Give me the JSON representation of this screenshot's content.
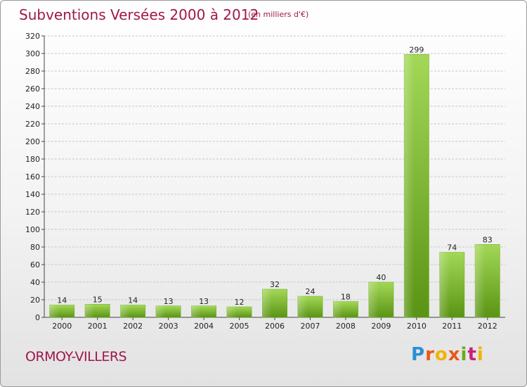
{
  "header": {
    "title": "Subventions Versées 2000 à 2012",
    "subtitle": "(en milliers d'€)"
  },
  "footer": {
    "commune": "ORMOY-VILLERS",
    "logo_text": "Proxiti"
  },
  "colors": {
    "title": "#a0174c",
    "bar_light": "#9bd24e",
    "bar_dark": "#5f9a17",
    "grid": "#c8c8c8"
  },
  "chart_data": {
    "type": "bar",
    "title": "Subventions Versées 2000 à 2012",
    "subtitle": "(en milliers d'€)",
    "xlabel": "",
    "ylabel": "",
    "categories": [
      "2000",
      "2001",
      "2002",
      "2003",
      "2004",
      "2005",
      "2006",
      "2007",
      "2008",
      "2009",
      "2010",
      "2011",
      "2012"
    ],
    "values": [
      14,
      15,
      14,
      13,
      13,
      12,
      32,
      24,
      18,
      40,
      299,
      74,
      83
    ],
    "ylim": [
      0,
      320
    ],
    "yticks": [
      0,
      20,
      40,
      60,
      80,
      100,
      120,
      140,
      160,
      180,
      200,
      220,
      240,
      260,
      280,
      300,
      320
    ],
    "grid": true,
    "legend": "none"
  }
}
